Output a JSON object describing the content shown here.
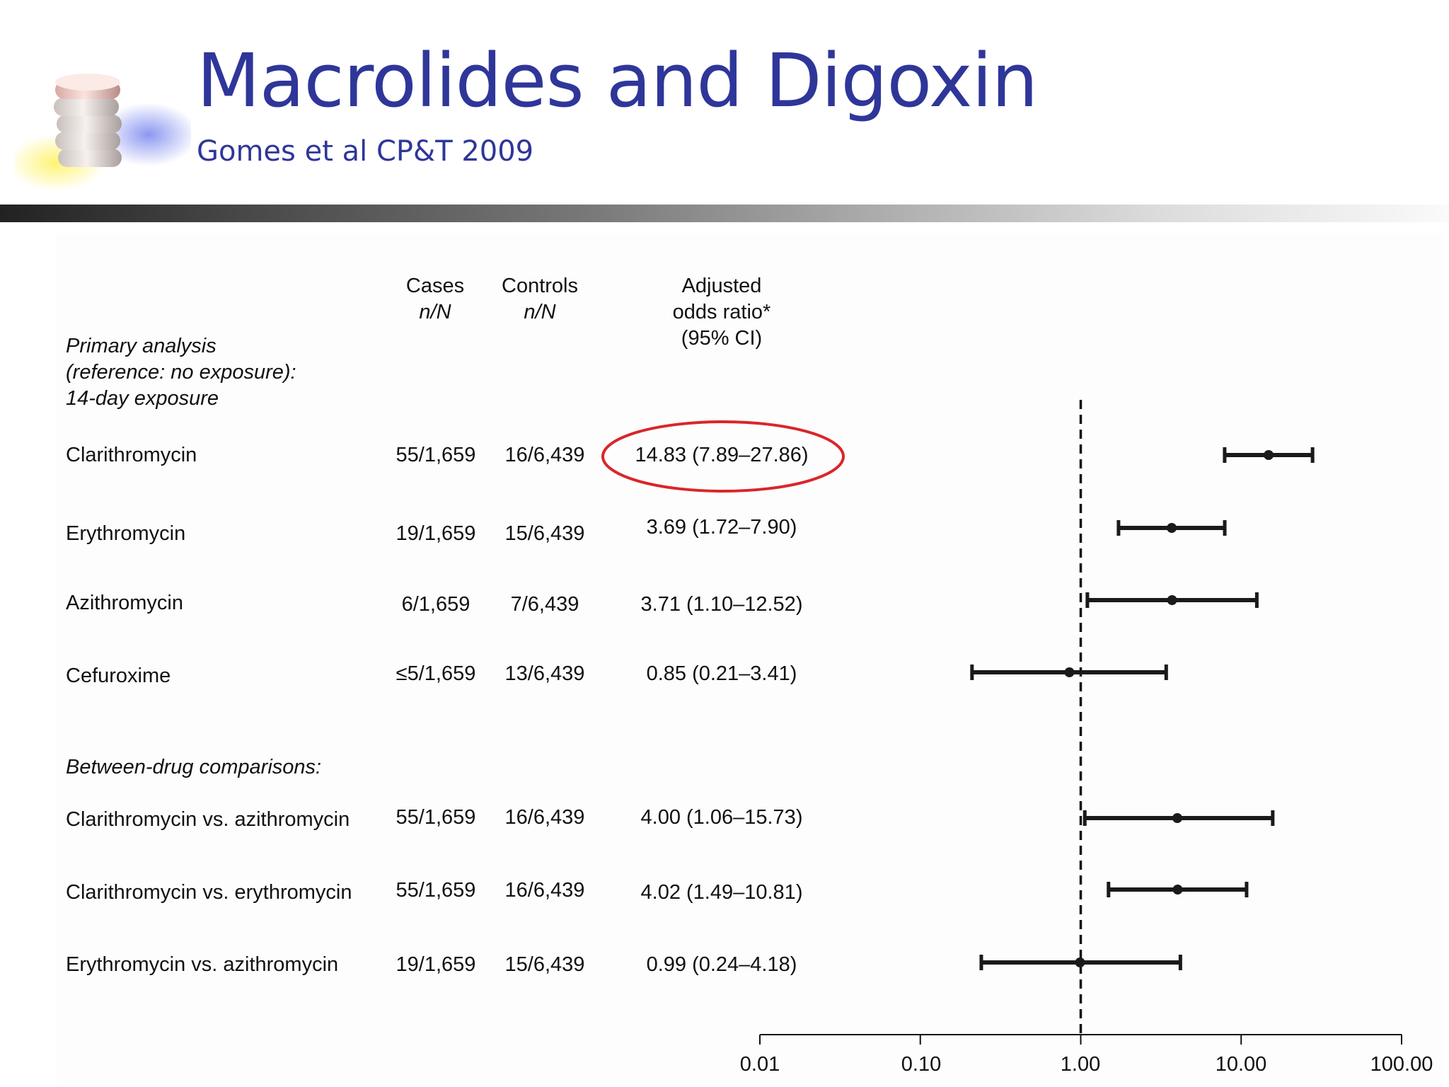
{
  "slide": {
    "title": "Macrolides and Digoxin",
    "subtitle": "Gomes et al CP&T 2009",
    "logo_icon": "pill-stack-icon",
    "title_color": "#2f3699"
  },
  "table": {
    "headers": {
      "cases": "Cases",
      "cases_sub": "n/N",
      "controls": "Controls",
      "controls_sub": "n/N",
      "or_line1": "Adjusted",
      "or_line2": "odds ratio*",
      "or_line3": "(95% CI)"
    },
    "sections": {
      "primary_line1": "Primary analysis",
      "primary_line2": "(reference: no exposure):",
      "primary_line3": "14-day exposure",
      "between": "Between-drug comparisons:"
    },
    "rows": [
      {
        "label": "Clarithromycin",
        "cases": "55/1,659",
        "controls": "16/6,439",
        "or_text": "14.83 (7.89–27.86)"
      },
      {
        "label": "Erythromycin",
        "cases": "19/1,659",
        "controls": "15/6,439",
        "or_text": "3.69 (1.72–7.90)"
      },
      {
        "label": "Azithromycin",
        "cases": "6/1,659",
        "controls": "7/6,439",
        "or_text": "3.71 (1.10–12.52)"
      },
      {
        "label": "Cefuroxime",
        "cases": "≤5/1,659",
        "controls": "13/6,439",
        "or_text": "0.85 (0.21–3.41)"
      },
      {
        "label": "Clarithromycin vs. azithromycin",
        "cases": "55/1,659",
        "controls": "16/6,439",
        "or_text": "4.00 (1.06–15.73)"
      },
      {
        "label": "Clarithromycin vs. erythromycin",
        "cases": "55/1,659",
        "controls": "16/6,439",
        "or_text": "4.02 (1.49–10.81)"
      },
      {
        "label": "Erythromycin vs. azithromycin",
        "cases": "19/1,659",
        "controls": "15/6,439",
        "or_text": "0.99 (0.24–4.18)"
      }
    ],
    "highlight_color": "#d9262a"
  },
  "chart_data": {
    "type": "scatter",
    "subtype": "forest-plot",
    "x_scale": "log",
    "xlim": [
      0.01,
      100
    ],
    "xticks": [
      "0.01",
      "0.10",
      "1.00",
      "10.00",
      "100.00"
    ],
    "reference_line": 1.0,
    "categories": [
      "Clarithromycin",
      "Erythromycin",
      "Azithromycin",
      "Cefuroxime",
      "Clarithromycin vs. azithromycin",
      "Clarithromycin vs. erythromycin",
      "Erythromycin vs. azithromycin"
    ],
    "values": [
      14.83,
      3.69,
      3.71,
      0.85,
      4.0,
      4.02,
      0.99
    ],
    "ci_low": [
      7.89,
      1.72,
      1.1,
      0.21,
      1.06,
      1.49,
      0.24
    ],
    "ci_high": [
      27.86,
      7.9,
      12.52,
      3.41,
      15.73,
      10.81,
      4.18
    ],
    "highlighted_category": "Clarithromycin",
    "title": "",
    "xlabel": "",
    "ylabel": ""
  }
}
